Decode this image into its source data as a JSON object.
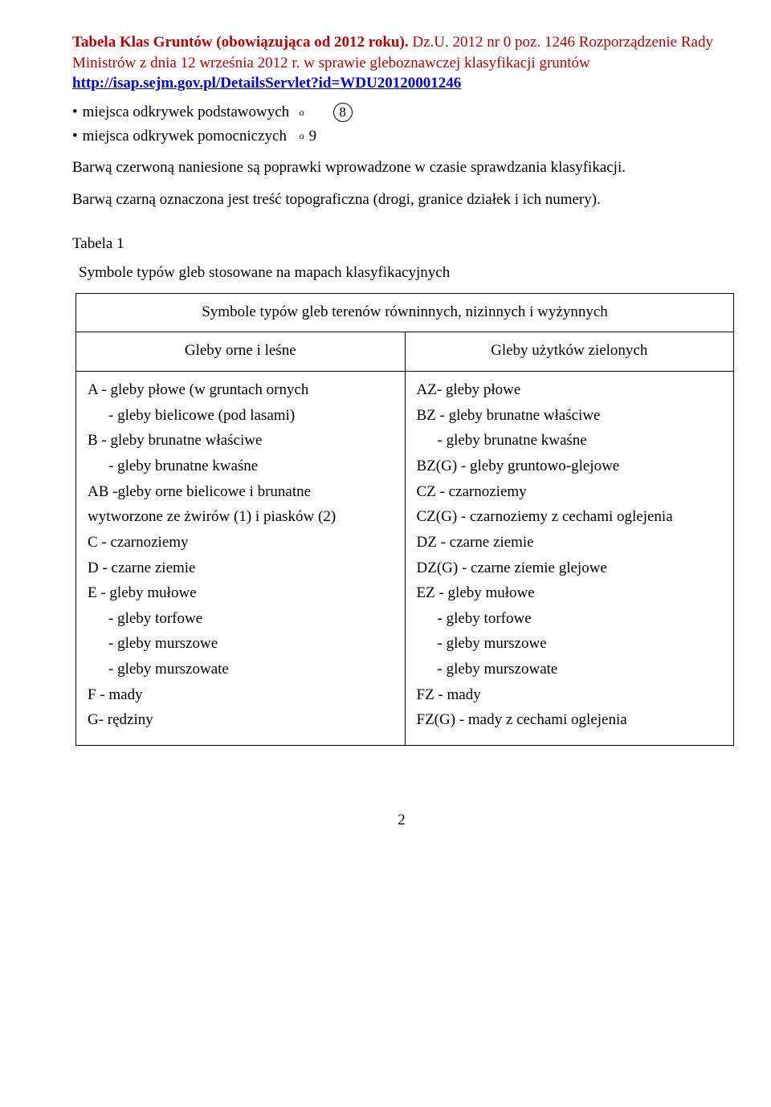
{
  "header": {
    "title_bold": "Tabela Klas Gruntów (obowiązująca od 2012 roku).",
    "title_rest": " Dz.U. 2012 nr 0 poz. 1246 Rozporządzenie Rady Ministrów z dnia 12 września 2012 r. w sprawie gleboznawczej klasyfikacji gruntów",
    "link": "http://isap.sejm.gov.pl/DetailsServlet?id=WDU20120001246"
  },
  "bullets": {
    "item1_text": "miejsca odkrywek podstawowych",
    "item1_sym": "o",
    "item1_num": "8",
    "item2_text": "miejsca odkrywek pomocniczych",
    "item2_sym": "o",
    "item2_num": "9"
  },
  "paras": {
    "p1": "Barwą czerwoną naniesione są poprawki wprowadzone w czasie sprawdzania klasyfikacji.",
    "p2": "Barwą czarną oznaczona jest treść topograficzna (drogi, granice działek i ich numery)."
  },
  "table": {
    "label": "Tabela 1",
    "caption": "Symbole typów gleb stosowane na mapach klasyfikacyjnych",
    "header_row": "Symbole typów gleb terenów równinnych, nizinnych i wyżynnych",
    "sub_left": "Gleby orne i leśne",
    "sub_right": "Gleby użytków zielonych",
    "left": [
      {
        "t": "A  - gleby płowe (w gruntach ornych",
        "i": 0
      },
      {
        "t": "- gleby bielicowe (pod lasami)",
        "i": 1
      },
      {
        "t": "B   - gleby brunatne właściwe",
        "i": 0
      },
      {
        "t": "- gleby brunatne kwaśne",
        "i": 1
      },
      {
        "t": "AB -gleby orne bielicowe i brunatne",
        "i": 0
      },
      {
        "t": "wytworzone ze żwirów (1) i piasków (2)",
        "i": 0
      },
      {
        "t": "C - czarnoziemy",
        "i": 0
      },
      {
        "t": "D - czarne ziemie",
        "i": 0
      },
      {
        "t": "E - gleby mułowe",
        "i": 0
      },
      {
        "t": "- gleby torfowe",
        "i": 1
      },
      {
        "t": "- gleby murszowe",
        "i": 1
      },
      {
        "t": "- gleby murszowate",
        "i": 1
      },
      {
        "t": "F  - mady",
        "i": 0
      },
      {
        "t": "G- rędziny",
        "i": 0
      }
    ],
    "right": [
      {
        "t": "AZ- gleby płowe",
        "i": 0
      },
      {
        "t": "BZ - gleby brunatne właściwe",
        "i": 0
      },
      {
        "t": "- gleby brunatne kwaśne",
        "i": 1
      },
      {
        "t": "BZ(G) - gleby gruntowo-glejowe",
        "i": 0
      },
      {
        "t": "CZ - czarnoziemy",
        "i": 0
      },
      {
        "t": "CZ(G) - czarnoziemy z cechami oglejenia",
        "i": 0
      },
      {
        "t": "DZ - czarne ziemie",
        "i": 0
      },
      {
        "t": "DZ(G) - czarne ziemie glejowe",
        "i": 0
      },
      {
        "t": "EZ - gleby mułowe",
        "i": 0
      },
      {
        "t": "- gleby torfowe",
        "i": 1
      },
      {
        "t": "- gleby murszowe",
        "i": 1
      },
      {
        "t": "- gleby murszowate",
        "i": 1
      },
      {
        "t": "FZ - mady",
        "i": 0
      },
      {
        "t": "FZ(G) - mady z cechami oglejenia",
        "i": 0
      }
    ]
  },
  "page_number": "2"
}
